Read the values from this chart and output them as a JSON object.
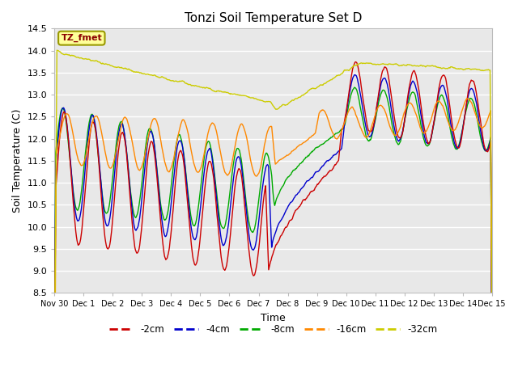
{
  "title": "Tonzi Soil Temperature Set D",
  "xlabel": "Time",
  "ylabel": "Soil Temperature (C)",
  "ylim": [
    8.5,
    14.5
  ],
  "annotation_text": "TZ_fmet",
  "annotation_color": "#8b0000",
  "annotation_bg": "#ffff99",
  "legend_labels": [
    "-2cm",
    "-4cm",
    "-8cm",
    "-16cm",
    "-32cm"
  ],
  "legend_colors": [
    "#cc0000",
    "#0000cc",
    "#00aa00",
    "#ff8800",
    "#cccc00"
  ],
  "x_tick_labels": [
    "Nov 30",
    "Dec 1",
    "Dec 2",
    "Dec 3",
    "Dec 4",
    "Dec 5",
    "Dec 6",
    "Dec 7",
    "Dec 8",
    "Dec 9",
    "Dec 10",
    "Dec 11",
    "Dec 12",
    "Dec 13",
    "Dec 14",
    "Dec 15"
  ],
  "n_points": 720,
  "figsize": [
    6.4,
    4.8
  ],
  "dpi": 100
}
